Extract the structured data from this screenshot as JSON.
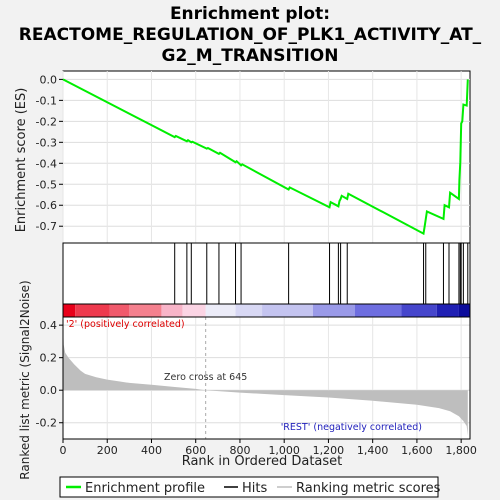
{
  "title_lines": [
    "Enrichment plot:",
    "REACTOME_REGULATION_OF_PLK1_ACTIVITY_AT_",
    "G2_M_TRANSITION"
  ],
  "colors": {
    "es_line": "#00ee00",
    "hits": "#000000",
    "metric_fill": "#bebebe",
    "pos_label": "#dd0000",
    "neg_label": "#2222bb",
    "zero_line": "#aaaaaa",
    "heat_pos": "#ee0000",
    "heat_neg": "#0000bb"
  },
  "chart_data": {
    "type": "line",
    "panels": {
      "es": {
        "ylabel": "Enrichment score (ES)",
        "ylim": [
          -0.78,
          0.04
        ],
        "yticks": [
          0.0,
          -0.1,
          -0.2,
          -0.3,
          -0.4,
          -0.5,
          -0.6,
          -0.7
        ],
        "tick_labels": [
          "0.0",
          "-0.1",
          "-0.2",
          "-0.3",
          "-0.4",
          "-0.5",
          "-0.6",
          "-0.7"
        ]
      },
      "metric": {
        "ylabel": "Ranked list metric (Signal2Noise)",
        "ylim": [
          -0.3,
          0.45
        ],
        "yticks": [
          0.4,
          0.2,
          0.0,
          -0.2
        ],
        "tick_labels": [
          "0.4",
          "0.2",
          "0.0",
          "-0.2"
        ]
      }
    },
    "xlabel": "Rank in Ordered Dataset",
    "xlim": [
      0,
      1840
    ],
    "xticks": [
      0,
      200,
      400,
      600,
      800,
      1000,
      1200,
      1400,
      1600,
      1800
    ],
    "xtick_labels": [
      "0",
      "200",
      "400",
      "600",
      "800",
      "1,000",
      "1,200",
      "1,400",
      "1,600",
      "1,800"
    ],
    "enrichment_profile": {
      "x": [
        0,
        505,
        510,
        560,
        565,
        580,
        585,
        650,
        655,
        705,
        710,
        780,
        785,
        805,
        810,
        1020,
        1025,
        1205,
        1210,
        1245,
        1250,
        1255,
        1260,
        1285,
        1290,
        1630,
        1635,
        1640,
        1645,
        1720,
        1725,
        1745,
        1750,
        1790,
        1792,
        1796,
        1800,
        1805,
        1810,
        1825,
        1830
      ],
      "y": [
        0.0,
        -0.275,
        -0.27,
        -0.295,
        -0.29,
        -0.3,
        -0.297,
        -0.33,
        -0.327,
        -0.355,
        -0.35,
        -0.395,
        -0.39,
        -0.41,
        -0.405,
        -0.525,
        -0.515,
        -0.61,
        -0.585,
        -0.605,
        -0.58,
        -0.57,
        -0.555,
        -0.57,
        -0.545,
        -0.735,
        -0.7,
        -0.665,
        -0.63,
        -0.665,
        -0.6,
        -0.61,
        -0.54,
        -0.57,
        -0.48,
        -0.395,
        -0.21,
        -0.2,
        -0.12,
        -0.125,
        0.0
      ]
    },
    "hits": [
      505,
      560,
      580,
      650,
      705,
      780,
      805,
      1020,
      1205,
      1245,
      1255,
      1285,
      1630,
      1640,
      1720,
      1745,
      1790,
      1796,
      1800,
      1810,
      1830
    ],
    "ranked_metric": {
      "x": [
        0,
        3,
        10,
        25,
        50,
        80,
        100,
        150,
        200,
        300,
        400,
        500,
        600,
        645,
        800,
        1000,
        1200,
        1400,
        1600,
        1700,
        1750,
        1790,
        1810,
        1825,
        1830
      ],
      "y": [
        0.43,
        0.28,
        0.23,
        0.2,
        0.16,
        0.12,
        0.1,
        0.08,
        0.065,
        0.045,
        0.033,
        0.02,
        0.008,
        0.0,
        -0.015,
        -0.03,
        -0.045,
        -0.065,
        -0.09,
        -0.11,
        -0.13,
        -0.16,
        -0.19,
        -0.22,
        -0.28
      ]
    },
    "zero_cross": 645,
    "annotations": {
      "zero_cross": "Zero cross at 645",
      "positive": "'2' (positively correlated)",
      "negative": "'REST' (negatively correlated)"
    },
    "legend": {
      "position": "bottom",
      "entries": [
        "Enrichment profile",
        "Hits",
        "Ranking metric scores"
      ]
    },
    "heatmap_band": [
      {
        "from": 0,
        "to": 55,
        "color": "#e8001a"
      },
      {
        "from": 55,
        "to": 210,
        "color": "#ee3a4e"
      },
      {
        "from": 210,
        "to": 300,
        "color": "#f05a6c"
      },
      {
        "from": 300,
        "to": 445,
        "color": "#f4808e"
      },
      {
        "from": 445,
        "to": 540,
        "color": "#f8b4c8"
      },
      {
        "from": 540,
        "to": 645,
        "color": "#fbd4e4"
      },
      {
        "from": 645,
        "to": 780,
        "color": "#ececf8"
      },
      {
        "from": 780,
        "to": 900,
        "color": "#d8d8f4"
      },
      {
        "from": 900,
        "to": 1130,
        "color": "#c4c4f0"
      },
      {
        "from": 1130,
        "to": 1320,
        "color": "#9a9ae8"
      },
      {
        "from": 1320,
        "to": 1530,
        "color": "#6e6ee0"
      },
      {
        "from": 1530,
        "to": 1690,
        "color": "#4646cc"
      },
      {
        "from": 1690,
        "to": 1790,
        "color": "#2020b4"
      },
      {
        "from": 1790,
        "to": 1840,
        "color": "#0c0c9c"
      }
    ]
  }
}
